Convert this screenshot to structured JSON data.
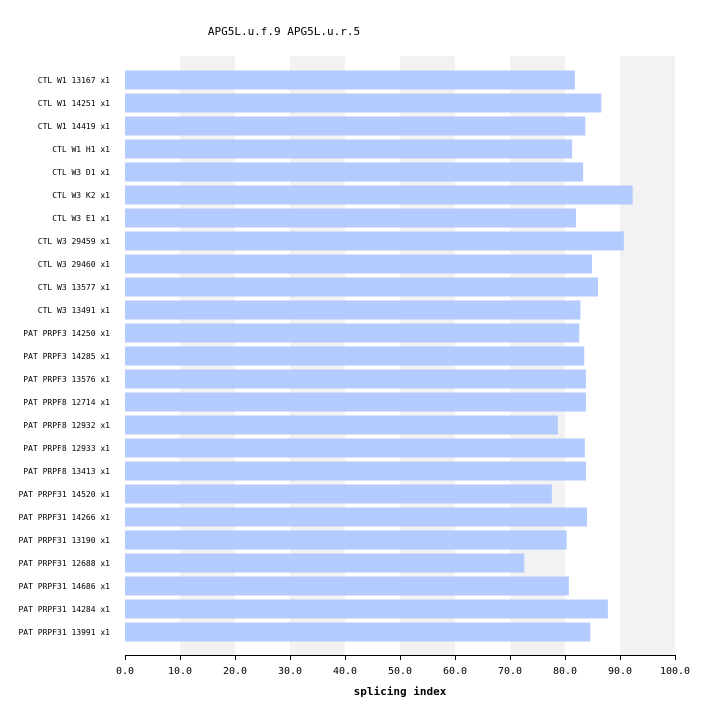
{
  "chart_data": {
    "type": "bar",
    "orientation": "horizontal",
    "title": "APG5L.u.f.9  APG5L.u.r.5",
    "xlabel": "splicing index",
    "ylabel": "",
    "xlim": [
      0,
      100
    ],
    "ticks": [
      "0.0",
      "10.0",
      "20.0",
      "30.0",
      "40.0",
      "50.0",
      "60.0",
      "70.0",
      "80.0",
      "90.0",
      "100.0"
    ],
    "tick_values": [
      0,
      10,
      20,
      30,
      40,
      50,
      60,
      70,
      80,
      90,
      100
    ],
    "categories": [
      "CTL W1 13167 x1",
      "CTL W1 14251 x1",
      "CTL W1 14419 x1",
      "CTL W1 H1 x1",
      "CTL W3 D1 x1",
      "CTL W3 K2 x1",
      "CTL W3 E1 x1",
      "CTL W3 29459 x1",
      "CTL W3 29460 x1",
      "CTL W3 13577 x1",
      "CTL W3 13491 x1",
      "PAT PRPF3 14250 x1",
      "PAT PRPF3 14285 x1",
      "PAT PRPF3 13576 x1",
      "PAT PRPF8 12714 x1",
      "PAT PRPF8 12932 x1",
      "PAT PRPF8 12933 x1",
      "PAT PRPF8 13413 x1",
      "PAT PRPF31 14520 x1",
      "PAT PRPF31 14266 x1",
      "PAT PRPF31 13190 x1",
      "PAT PRPF31 12688 x1",
      "PAT PRPF31 14686 x1",
      "PAT PRPF31 14284 x1",
      "PAT PRPF31 13991 x1"
    ],
    "values": [
      81.8,
      86.6,
      83.7,
      81.3,
      83.3,
      92.3,
      82.0,
      90.7,
      84.9,
      86.0,
      82.8,
      82.6,
      83.5,
      83.8,
      83.8,
      78.7,
      83.6,
      83.8,
      77.6,
      84.0,
      80.3,
      72.6,
      80.7,
      87.8,
      84.6
    ],
    "bar_color": "#b3cbff",
    "band_color": "#f2f2f2",
    "grid": "alternating vertical bands",
    "legend": "none"
  }
}
